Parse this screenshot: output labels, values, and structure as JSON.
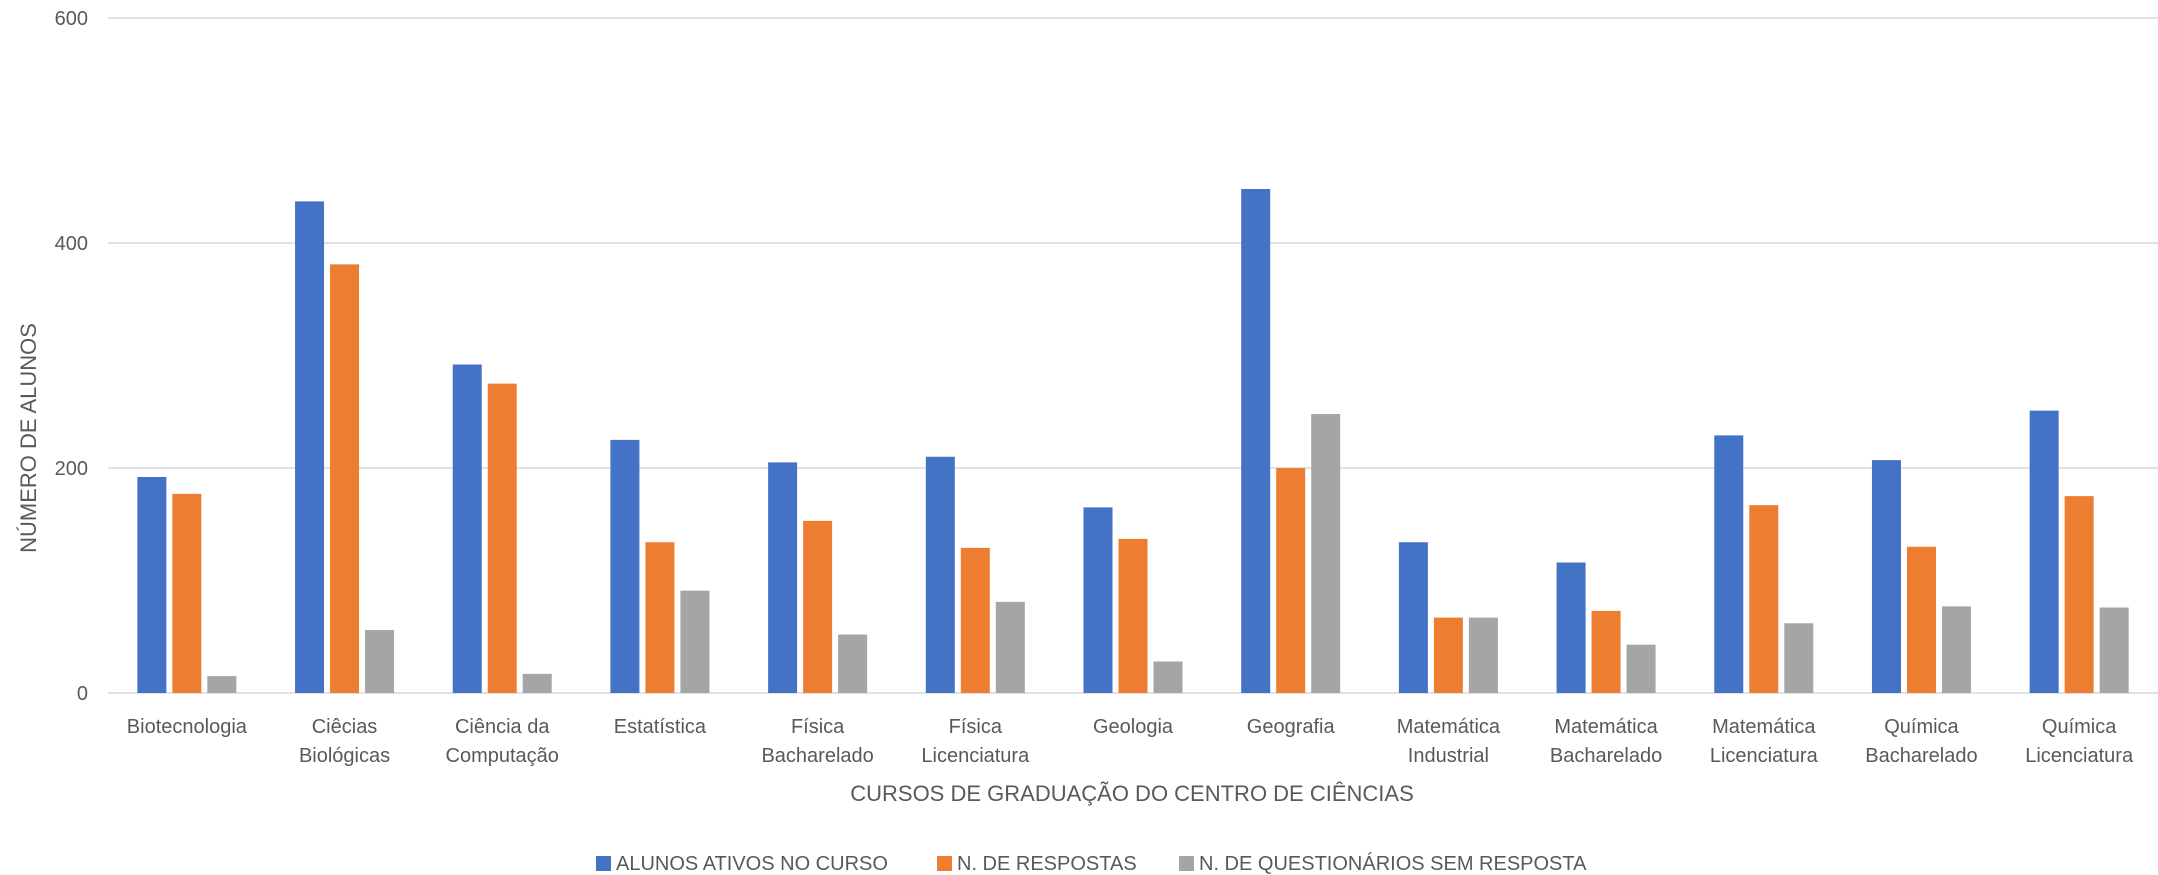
{
  "chart_data": {
    "type": "bar",
    "title": "",
    "xlabel": "CURSOS DE GRADUAÇÃO DO CENTRO DE CIÊNCIAS",
    "ylabel": "NÚMERO DE  ALUNOS",
    "ylim": [
      0,
      600
    ],
    "yticks": [
      "0",
      "200",
      "400",
      "600"
    ],
    "grid": true,
    "legend_position": "bottom",
    "categories": [
      [
        "Biotecnologia"
      ],
      [
        "Ciêcias",
        "Biológicas"
      ],
      [
        "Ciência da",
        "Computação"
      ],
      [
        "Estatística"
      ],
      [
        "Física",
        "Bacharelado"
      ],
      [
        "Física",
        "Licenciatura"
      ],
      [
        "Geologia"
      ],
      [
        "Geografia"
      ],
      [
        "Matemática",
        "Industrial"
      ],
      [
        "Matemática",
        "Bacharelado"
      ],
      [
        "Matemática",
        "Licenciatura"
      ],
      [
        "Química",
        "Bacharelado"
      ],
      [
        "Química",
        "Licenciatura"
      ]
    ],
    "series": [
      {
        "name": "ALUNOS ATIVOS NO CURSO",
        "color": "#4472c4",
        "values": [
          192,
          437,
          292,
          225,
          205,
          210,
          165,
          448,
          134,
          116,
          229,
          207,
          251
        ]
      },
      {
        "name": "N. DE RESPOSTAS",
        "color": "#ed7d31",
        "values": [
          177,
          381,
          275,
          134,
          153,
          129,
          137,
          200,
          67,
          73,
          167,
          130,
          175
        ]
      },
      {
        "name": "N. DE QUESTIONÁRIOS SEM RESPOSTA",
        "color": "#a5a5a5",
        "values": [
          15,
          56,
          17,
          91,
          52,
          81,
          28,
          248,
          67,
          43,
          62,
          77,
          76
        ]
      }
    ]
  }
}
